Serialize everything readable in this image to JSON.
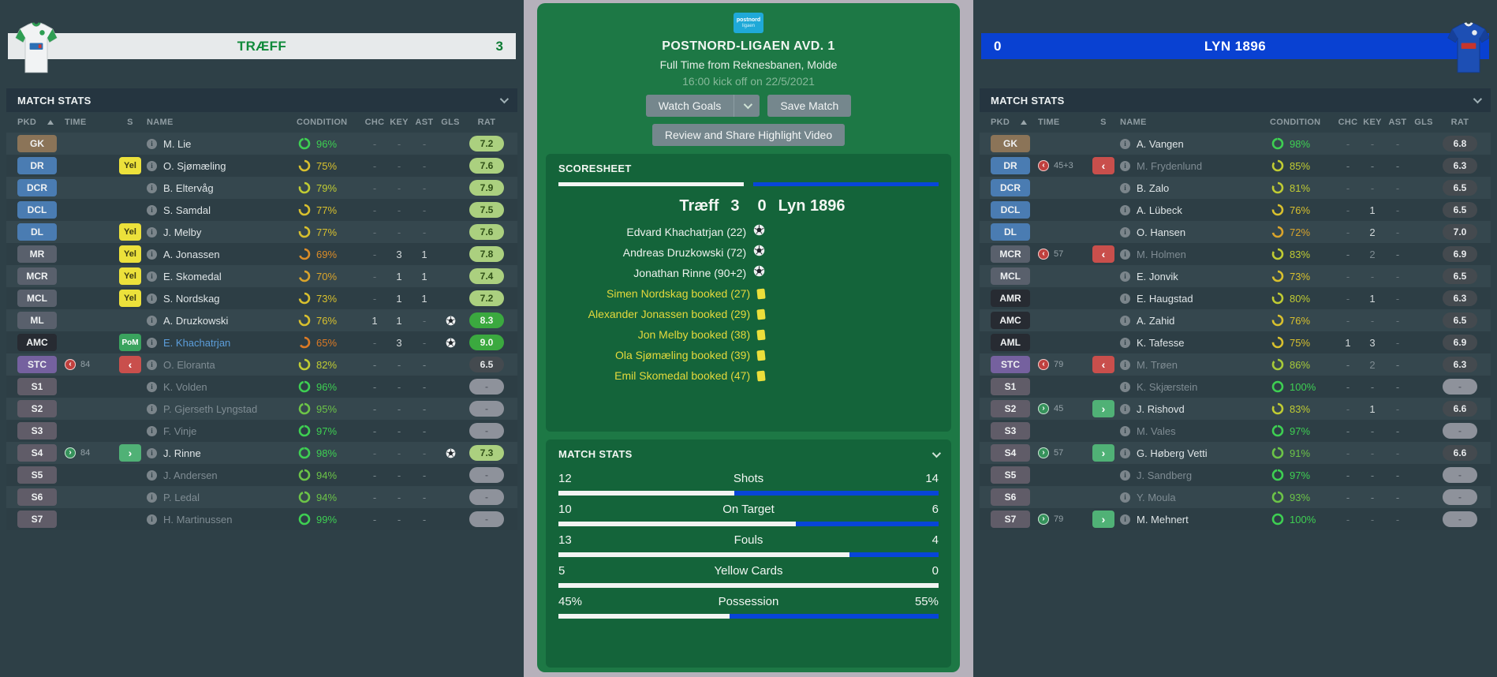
{
  "colors": {
    "home_accent": "#0f8a3a",
    "away_accent": "#0941d2",
    "center_green": "#1d7845",
    "bar_home": "#f2f4f2",
    "bar_away": "#0845d8"
  },
  "columns": {
    "pkd": "PKD",
    "time": "TIME",
    "s": "S",
    "name": "NAME",
    "condition": "CONDITION",
    "chc": "CHC",
    "key": "KEY",
    "ast": "AST",
    "gls": "GLS",
    "rat": "RAT"
  },
  "home_panel": {
    "team": "TRÆFF",
    "score": "3",
    "title": "MATCH STATS",
    "rows": [
      {
        "pos": "GK",
        "type": "gk",
        "name": "M. Lie",
        "cond": 96,
        "chc": "-",
        "key": "-",
        "ast": "-",
        "rat": "7.2",
        "rstyle": "good"
      },
      {
        "pos": "DR",
        "type": "def",
        "s": "Yel",
        "name": "O. Sjømæling",
        "cond": 75,
        "chc": "-",
        "key": "-",
        "ast": "-",
        "rat": "7.6",
        "rstyle": "good"
      },
      {
        "pos": "DCR",
        "type": "def",
        "name": "B. Eltervåg",
        "cond": 79,
        "chc": "-",
        "key": "-",
        "ast": "-",
        "rat": "7.9",
        "rstyle": "good"
      },
      {
        "pos": "DCL",
        "type": "def",
        "name": "S. Samdal",
        "cond": 77,
        "chc": "-",
        "key": "-",
        "ast": "-",
        "rat": "7.5",
        "rstyle": "good"
      },
      {
        "pos": "DL",
        "type": "def",
        "s": "Yel",
        "name": "J. Melby",
        "cond": 77,
        "chc": "-",
        "key": "-",
        "ast": "-",
        "rat": "7.6",
        "rstyle": "good"
      },
      {
        "pos": "MR",
        "type": "mid",
        "s": "Yel",
        "name": "A. Jonassen",
        "cond": 69,
        "chc": "-",
        "key": "3",
        "ast": "1",
        "rat": "7.8",
        "rstyle": "good"
      },
      {
        "pos": "MCR",
        "type": "mid",
        "s": "Yel",
        "name": "E. Skomedal",
        "cond": 70,
        "chc": "-",
        "key": "1",
        "ast": "1",
        "rat": "7.4",
        "rstyle": "good"
      },
      {
        "pos": "MCL",
        "type": "mid",
        "s": "Yel",
        "name": "S. Nordskag",
        "cond": 73,
        "chc": "-",
        "key": "1",
        "ast": "1",
        "rat": "7.2",
        "rstyle": "good"
      },
      {
        "pos": "ML",
        "type": "mid",
        "name": "A. Druzkowski",
        "cond": 76,
        "chc": "1",
        "key": "1",
        "ast": "-",
        "goal": true,
        "rat": "8.3",
        "rstyle": "great"
      },
      {
        "pos": "AMC",
        "type": "am",
        "s": "PoM",
        "name": "E. Khachatrjan",
        "blue": true,
        "cond": 65,
        "chc": "-",
        "key": "3",
        "ast": "-",
        "goal": true,
        "rat": "9.0",
        "rstyle": "great"
      },
      {
        "pos": "STC",
        "type": "stc",
        "tdir": "off",
        "time": "84",
        "s": "off",
        "name": "O. Eloranta",
        "dim": true,
        "cond": 82,
        "chc": "-",
        "key": "-",
        "ast": "-",
        "rat": "6.5",
        "rstyle": "poor"
      },
      {
        "pos": "S1",
        "type": "sub",
        "name": "K. Volden",
        "dim": true,
        "cond": 96,
        "chc": "-",
        "key": "-",
        "ast": "-",
        "rat": "-",
        "rstyle": "none"
      },
      {
        "pos": "S2",
        "type": "sub",
        "name": "P. Gjerseth Lyngstad",
        "dim": true,
        "cond": 95,
        "chc": "-",
        "key": "-",
        "ast": "-",
        "rat": "-",
        "rstyle": "none"
      },
      {
        "pos": "S3",
        "type": "sub",
        "name": "F. Vinje",
        "dim": true,
        "cond": 97,
        "chc": "-",
        "key": "-",
        "ast": "-",
        "rat": "-",
        "rstyle": "none"
      },
      {
        "pos": "S4",
        "type": "sub",
        "tdir": "on",
        "time": "84",
        "s": "on",
        "name": "J. Rinne",
        "cond": 98,
        "chc": "-",
        "key": "-",
        "ast": "-",
        "goal": true,
        "rat": "7.3",
        "rstyle": "good"
      },
      {
        "pos": "S5",
        "type": "sub",
        "name": "J. Andersen",
        "dim": true,
        "cond": 94,
        "chc": "-",
        "key": "-",
        "ast": "-",
        "rat": "-",
        "rstyle": "none"
      },
      {
        "pos": "S6",
        "type": "sub",
        "name": "P. Ledal",
        "dim": true,
        "cond": 94,
        "chc": "-",
        "key": "-",
        "ast": "-",
        "rat": "-",
        "rstyle": "none"
      },
      {
        "pos": "S7",
        "type": "sub",
        "name": "H. Martinussen",
        "dim": true,
        "cond": 99,
        "chc": "-",
        "key": "-",
        "ast": "-",
        "rat": "-",
        "rstyle": "none"
      }
    ]
  },
  "away_panel": {
    "team": "LYN 1896",
    "score": "0",
    "title": "MATCH STATS",
    "rows": [
      {
        "pos": "GK",
        "type": "gk",
        "name": "A. Vangen",
        "cond": 98,
        "chc": "-",
        "key": "-",
        "ast": "-",
        "rat": "6.8",
        "rstyle": "poor"
      },
      {
        "pos": "DR",
        "type": "def",
        "tdir": "off",
        "time": "45+3",
        "s": "off",
        "name": "M. Frydenlund",
        "dim": true,
        "cond": 85,
        "chc": "-",
        "key": "-",
        "ast": "-",
        "rat": "6.3",
        "rstyle": "poor"
      },
      {
        "pos": "DCR",
        "type": "def",
        "name": "B. Zalo",
        "cond": 81,
        "chc": "-",
        "key": "-",
        "ast": "-",
        "rat": "6.5",
        "rstyle": "poor"
      },
      {
        "pos": "DCL",
        "type": "def",
        "name": "A. Lübeck",
        "cond": 76,
        "chc": "-",
        "key": "1",
        "ast": "-",
        "rat": "6.5",
        "rstyle": "poor"
      },
      {
        "pos": "DL",
        "type": "def",
        "name": "O. Hansen",
        "cond": 72,
        "chc": "-",
        "key": "2",
        "ast": "-",
        "rat": "7.0",
        "rstyle": "poor"
      },
      {
        "pos": "MCR",
        "type": "mid",
        "tdir": "off",
        "time": "57",
        "s": "off",
        "name": "M. Holmen",
        "dim": true,
        "cond": 83,
        "chc": "-",
        "key": "2",
        "ast": "-",
        "rat": "6.9",
        "rstyle": "poor"
      },
      {
        "pos": "MCL",
        "type": "mid",
        "name": "E. Jonvik",
        "cond": 73,
        "chc": "-",
        "key": "-",
        "ast": "-",
        "rat": "6.5",
        "rstyle": "poor"
      },
      {
        "pos": "AMR",
        "type": "am",
        "name": "E. Haugstad",
        "cond": 80,
        "chc": "-",
        "key": "1",
        "ast": "-",
        "rat": "6.3",
        "rstyle": "poor"
      },
      {
        "pos": "AMC",
        "type": "am",
        "name": "A. Zahid",
        "cond": 76,
        "chc": "-",
        "key": "-",
        "ast": "-",
        "rat": "6.5",
        "rstyle": "poor"
      },
      {
        "pos": "AML",
        "type": "am",
        "name": "K. Tafesse",
        "cond": 75,
        "chc": "1",
        "key": "3",
        "ast": "-",
        "rat": "6.9",
        "rstyle": "poor"
      },
      {
        "pos": "STC",
        "type": "stc",
        "tdir": "off",
        "time": "79",
        "s": "off",
        "name": "M. Trøen",
        "dim": true,
        "cond": 86,
        "chc": "-",
        "key": "2",
        "ast": "-",
        "rat": "6.3",
        "rstyle": "poor"
      },
      {
        "pos": "S1",
        "type": "sub",
        "name": "K. Skjærstein",
        "dim": true,
        "cond": 100,
        "chc": "-",
        "key": "-",
        "ast": "-",
        "rat": "-",
        "rstyle": "none"
      },
      {
        "pos": "S2",
        "type": "sub",
        "tdir": "on",
        "time": "45",
        "s": "on",
        "name": "J. Rishovd",
        "cond": 83,
        "chc": "-",
        "key": "1",
        "ast": "-",
        "rat": "6.6",
        "rstyle": "poor"
      },
      {
        "pos": "S3",
        "type": "sub",
        "name": "M. Vales",
        "dim": true,
        "cond": 97,
        "chc": "-",
        "key": "-",
        "ast": "-",
        "rat": "-",
        "rstyle": "none"
      },
      {
        "pos": "S4",
        "type": "sub",
        "tdir": "on",
        "time": "57",
        "s": "on",
        "name": "G. Høberg Vetti",
        "cond": 91,
        "chc": "-",
        "key": "-",
        "ast": "-",
        "rat": "6.6",
        "rstyle": "poor"
      },
      {
        "pos": "S5",
        "type": "sub",
        "name": "J. Sandberg",
        "dim": true,
        "cond": 97,
        "chc": "-",
        "key": "-",
        "ast": "-",
        "rat": "-",
        "rstyle": "none"
      },
      {
        "pos": "S6",
        "type": "sub",
        "name": "Y. Moula",
        "dim": true,
        "cond": 93,
        "chc": "-",
        "key": "-",
        "ast": "-",
        "rat": "-",
        "rstyle": "none"
      },
      {
        "pos": "S7",
        "type": "sub",
        "tdir": "on",
        "time": "79",
        "s": "on",
        "name": "M. Mehnert",
        "cond": 100,
        "chc": "-",
        "key": "-",
        "ast": "-",
        "rat": "-",
        "rstyle": "none"
      }
    ]
  },
  "center": {
    "league_badge_line1": "postnord",
    "league_badge_line2": "ligaen",
    "competition": "POSTNORD-LIGAEN AVD. 1",
    "status_line": "Full Time from Reknesbanen, Molde",
    "kickoff_line": "16:00 kick off on 22/5/2021",
    "watch_goals_label": "Watch Goals",
    "save_match_label": "Save Match",
    "review_label": "Review and Share Highlight Video",
    "scoresheet": {
      "title": "SCORESHEET",
      "home_name": "Træff",
      "home_score": "3",
      "away_score": "0",
      "away_name": "Lyn 1896",
      "goals": [
        "Edvard Khachatrjan (22)",
        "Andreas Druzkowski (72)",
        "Jonathan Rinne (90+2)"
      ],
      "bookings": [
        "Simen Nordskag booked (27)",
        "Alexander Jonassen booked (29)",
        "Jon Melby booked (38)",
        "Ola Sjømæling booked (39)",
        "Emil Skomedal booked (47)"
      ]
    },
    "match_stats": {
      "title": "MATCH STATS",
      "rows": [
        {
          "label": "Shots",
          "home": "12",
          "away": "14"
        },
        {
          "label": "On Target",
          "home": "10",
          "away": "6"
        },
        {
          "label": "Fouls",
          "home": "13",
          "away": "4"
        },
        {
          "label": "Yellow Cards",
          "home": "5",
          "away": "0"
        },
        {
          "label": "Possession",
          "home": "45%",
          "away": "55%"
        }
      ]
    }
  }
}
